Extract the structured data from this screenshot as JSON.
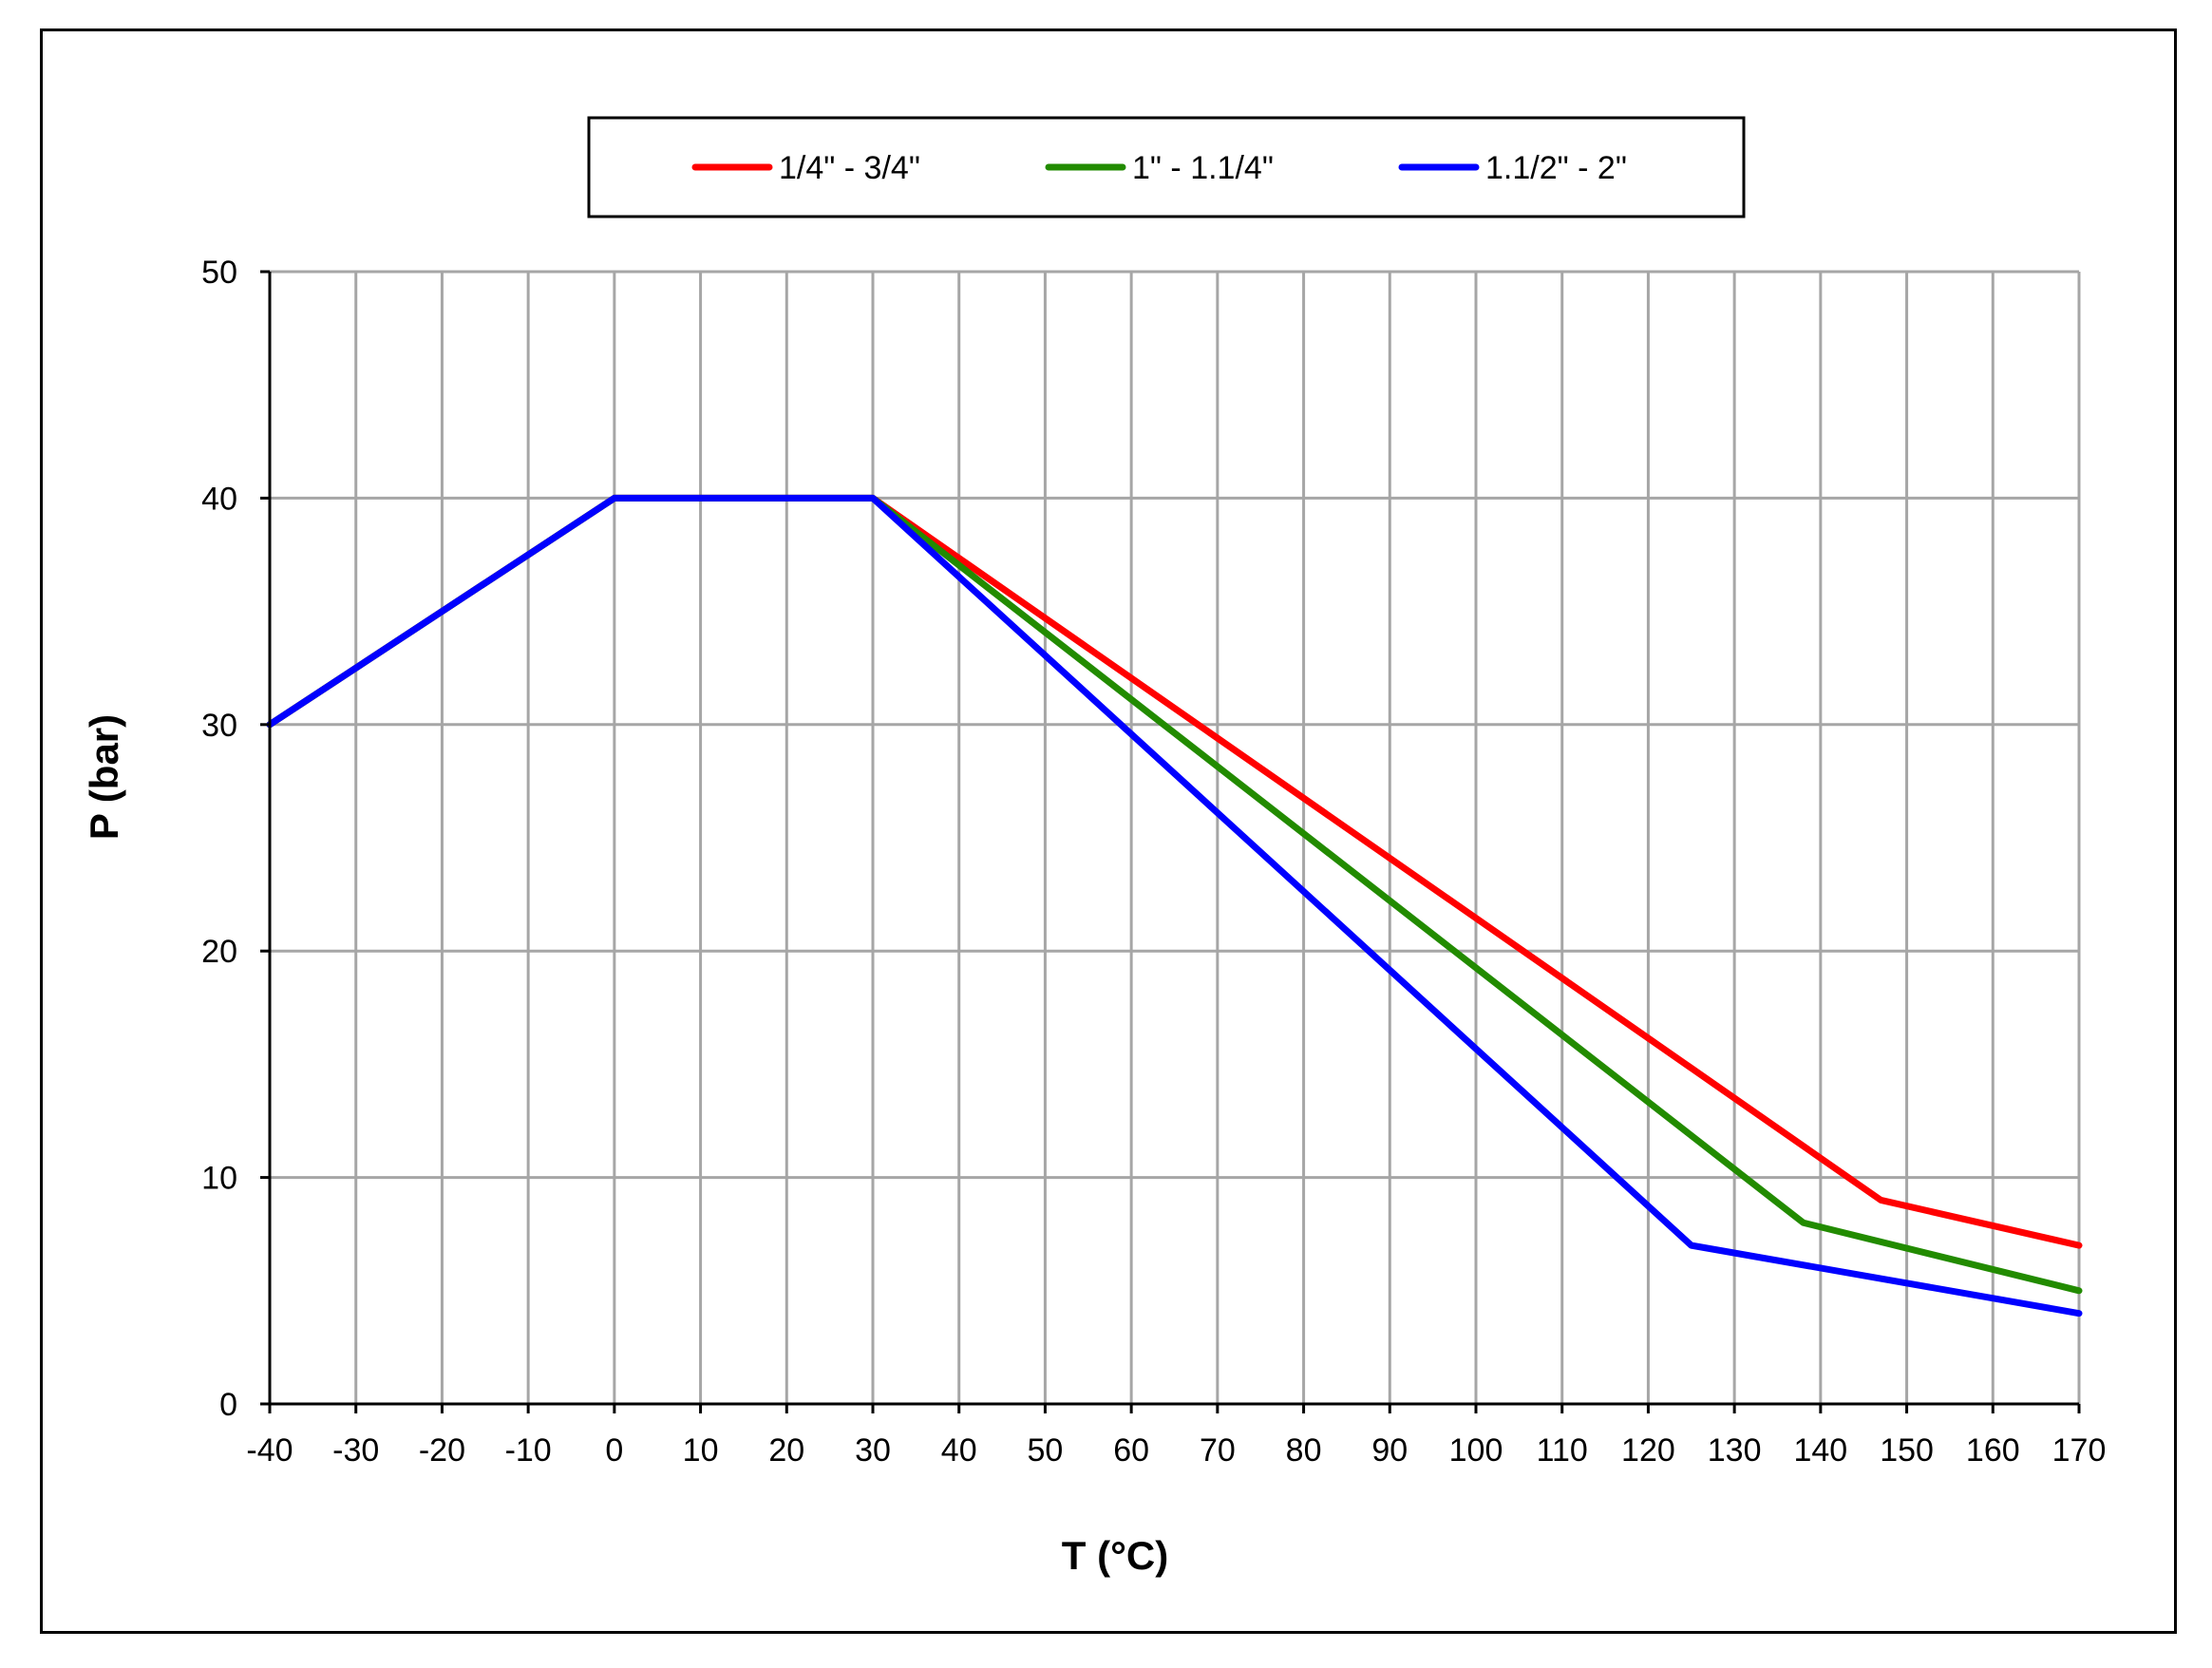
{
  "chart_data": {
    "type": "line",
    "title": "",
    "xlabel": "T (°C)",
    "ylabel": "P (bar)",
    "xlim": [
      -40,
      170
    ],
    "ylim": [
      0,
      50
    ],
    "x_ticks": [
      -40,
      -30,
      -20,
      -10,
      0,
      10,
      20,
      30,
      40,
      50,
      60,
      70,
      80,
      90,
      100,
      110,
      120,
      130,
      140,
      150,
      160,
      170
    ],
    "y_ticks": [
      0,
      10,
      20,
      30,
      40,
      50
    ],
    "grid": true,
    "legend_position": "top-center",
    "series": [
      {
        "name": "1/4\" - 3/4\"",
        "color": "#ff0000",
        "points": [
          [
            -40,
            30
          ],
          [
            0,
            40
          ],
          [
            30,
            40
          ],
          [
            147,
            9
          ],
          [
            170,
            7
          ]
        ]
      },
      {
        "name": "1\" - 1.1/4\"",
        "color": "#228b00",
        "points": [
          [
            -40,
            30
          ],
          [
            0,
            40
          ],
          [
            30,
            40
          ],
          [
            138,
            8
          ],
          [
            170,
            5
          ]
        ]
      },
      {
        "name": "1.1/2\" - 2\"",
        "color": "#0000ff",
        "points": [
          [
            -40,
            30
          ],
          [
            0,
            40
          ],
          [
            30,
            40
          ],
          [
            125,
            7
          ],
          [
            170,
            4
          ]
        ]
      }
    ]
  }
}
